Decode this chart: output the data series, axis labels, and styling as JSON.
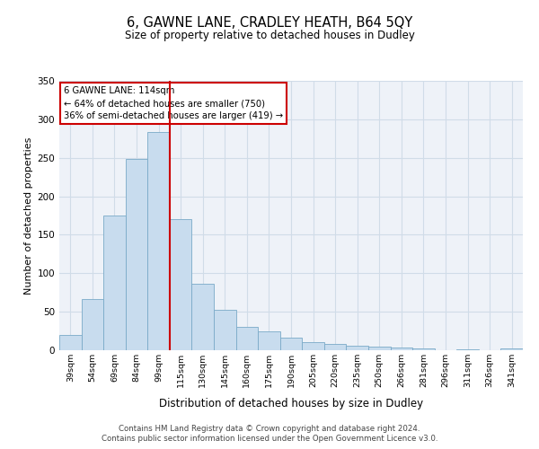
{
  "title": "6, GAWNE LANE, CRADLEY HEATH, B64 5QY",
  "subtitle": "Size of property relative to detached houses in Dudley",
  "xlabel": "Distribution of detached houses by size in Dudley",
  "ylabel": "Number of detached properties",
  "bar_color": "#c8dcee",
  "bar_edge_color": "#7aaac8",
  "categories": [
    "39sqm",
    "54sqm",
    "69sqm",
    "84sqm",
    "99sqm",
    "115sqm",
    "130sqm",
    "145sqm",
    "160sqm",
    "175sqm",
    "190sqm",
    "205sqm",
    "220sqm",
    "235sqm",
    "250sqm",
    "266sqm",
    "281sqm",
    "296sqm",
    "311sqm",
    "326sqm",
    "341sqm"
  ],
  "values": [
    20,
    67,
    175,
    248,
    283,
    170,
    86,
    52,
    30,
    24,
    16,
    10,
    8,
    6,
    5,
    3,
    2,
    0,
    1,
    0,
    2
  ],
  "ylim": [
    0,
    350
  ],
  "yticks": [
    0,
    50,
    100,
    150,
    200,
    250,
    300,
    350
  ],
  "vline_label": "6 GAWNE LANE: 114sqm",
  "annotation_line1": "← 64% of detached houses are smaller (750)",
  "annotation_line2": "36% of semi-detached houses are larger (419) →",
  "annotation_box_color": "#ffffff",
  "annotation_box_edge_color": "#cc0000",
  "vline_color": "#cc0000",
  "grid_color": "#d0dce8",
  "bg_color": "#eef2f8",
  "footer_line1": "Contains HM Land Registry data © Crown copyright and database right 2024.",
  "footer_line2": "Contains public sector information licensed under the Open Government Licence v3.0."
}
